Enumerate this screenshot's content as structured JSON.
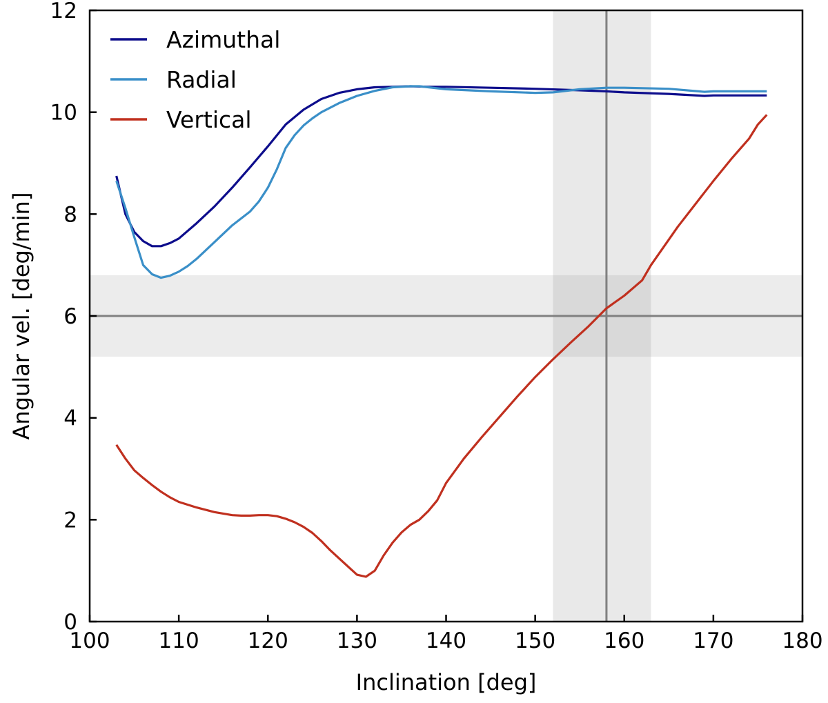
{
  "chart_data": {
    "type": "line",
    "title": "",
    "xlabel": "Inclination [deg]",
    "ylabel": "Angular vel. [deg/min]",
    "xlim": [
      100,
      180
    ],
    "ylim": [
      0,
      12
    ],
    "xticks": [
      100,
      110,
      120,
      130,
      140,
      150,
      160,
      170,
      180
    ],
    "yticks": [
      0,
      2,
      4,
      6,
      8,
      10,
      12
    ],
    "grid": false,
    "legend_position": "top-left",
    "colors": {
      "Azimuthal": "#0d0d8c",
      "Radial": "#3a8fc8",
      "Vertical": "#c0301f",
      "reference": "#808080",
      "band": "#e9e9e9"
    },
    "reference": {
      "inclination": 158,
      "inclination_band": [
        152,
        163
      ],
      "angular_velocity": 6,
      "angular_velocity_band": [
        5.2,
        6.8
      ]
    },
    "series": [
      {
        "name": "Azimuthal",
        "x": [
          103,
          104,
          105,
          106,
          107,
          108,
          109,
          110,
          112,
          114,
          116,
          118,
          120,
          122,
          124,
          126,
          128,
          130,
          132,
          134,
          136,
          138,
          140,
          145,
          150,
          155,
          158,
          160,
          165,
          169,
          170,
          176
        ],
        "y": [
          8.75,
          8.0,
          7.65,
          7.47,
          7.37,
          7.37,
          7.43,
          7.52,
          7.82,
          8.15,
          8.52,
          8.92,
          9.33,
          9.76,
          10.05,
          10.26,
          10.38,
          10.45,
          10.49,
          10.5,
          10.51,
          10.5,
          10.5,
          10.48,
          10.46,
          10.43,
          10.41,
          10.39,
          10.36,
          10.32,
          10.33,
          10.33
        ]
      },
      {
        "name": "Radial",
        "x": [
          103,
          104,
          105,
          106,
          107,
          108,
          109,
          110,
          111,
          112,
          114,
          116,
          118,
          119,
          120,
          121,
          122,
          123,
          124,
          125,
          126,
          128,
          130,
          132,
          134,
          136,
          137,
          138,
          140,
          145,
          150,
          152,
          155,
          158,
          160,
          165,
          169,
          170,
          176
        ],
        "y": [
          8.65,
          8.12,
          7.55,
          7.0,
          6.82,
          6.75,
          6.79,
          6.87,
          6.98,
          7.12,
          7.45,
          7.78,
          8.05,
          8.25,
          8.52,
          8.88,
          9.3,
          9.55,
          9.74,
          9.88,
          10.0,
          10.18,
          10.32,
          10.42,
          10.49,
          10.51,
          10.51,
          10.49,
          10.45,
          10.41,
          10.38,
          10.39,
          10.45,
          10.48,
          10.48,
          10.46,
          10.4,
          10.41,
          10.41
        ]
      },
      {
        "name": "Vertical",
        "x": [
          103,
          104,
          105,
          106,
          107,
          108,
          109,
          110,
          112,
          114,
          116,
          117,
          118,
          119,
          120,
          121,
          122,
          123,
          124,
          125,
          126,
          127,
          128,
          129,
          130,
          131,
          132,
          133,
          134,
          135,
          136,
          137,
          138,
          139,
          140,
          142,
          144,
          146,
          148,
          150,
          152,
          154,
          156,
          158,
          160,
          162,
          163,
          165,
          166,
          168,
          170,
          172,
          174,
          175,
          176
        ],
        "y": [
          3.47,
          3.2,
          2.97,
          2.82,
          2.68,
          2.55,
          2.44,
          2.35,
          2.24,
          2.15,
          2.09,
          2.08,
          2.08,
          2.09,
          2.09,
          2.07,
          2.02,
          1.95,
          1.86,
          1.74,
          1.58,
          1.4,
          1.24,
          1.08,
          0.92,
          0.88,
          1.0,
          1.3,
          1.55,
          1.75,
          1.9,
          2.0,
          2.17,
          2.38,
          2.72,
          3.2,
          3.62,
          4.02,
          4.42,
          4.8,
          5.15,
          5.48,
          5.8,
          6.15,
          6.4,
          6.7,
          7.0,
          7.5,
          7.75,
          8.2,
          8.65,
          9.08,
          9.48,
          9.76,
          9.95
        ]
      }
    ]
  }
}
